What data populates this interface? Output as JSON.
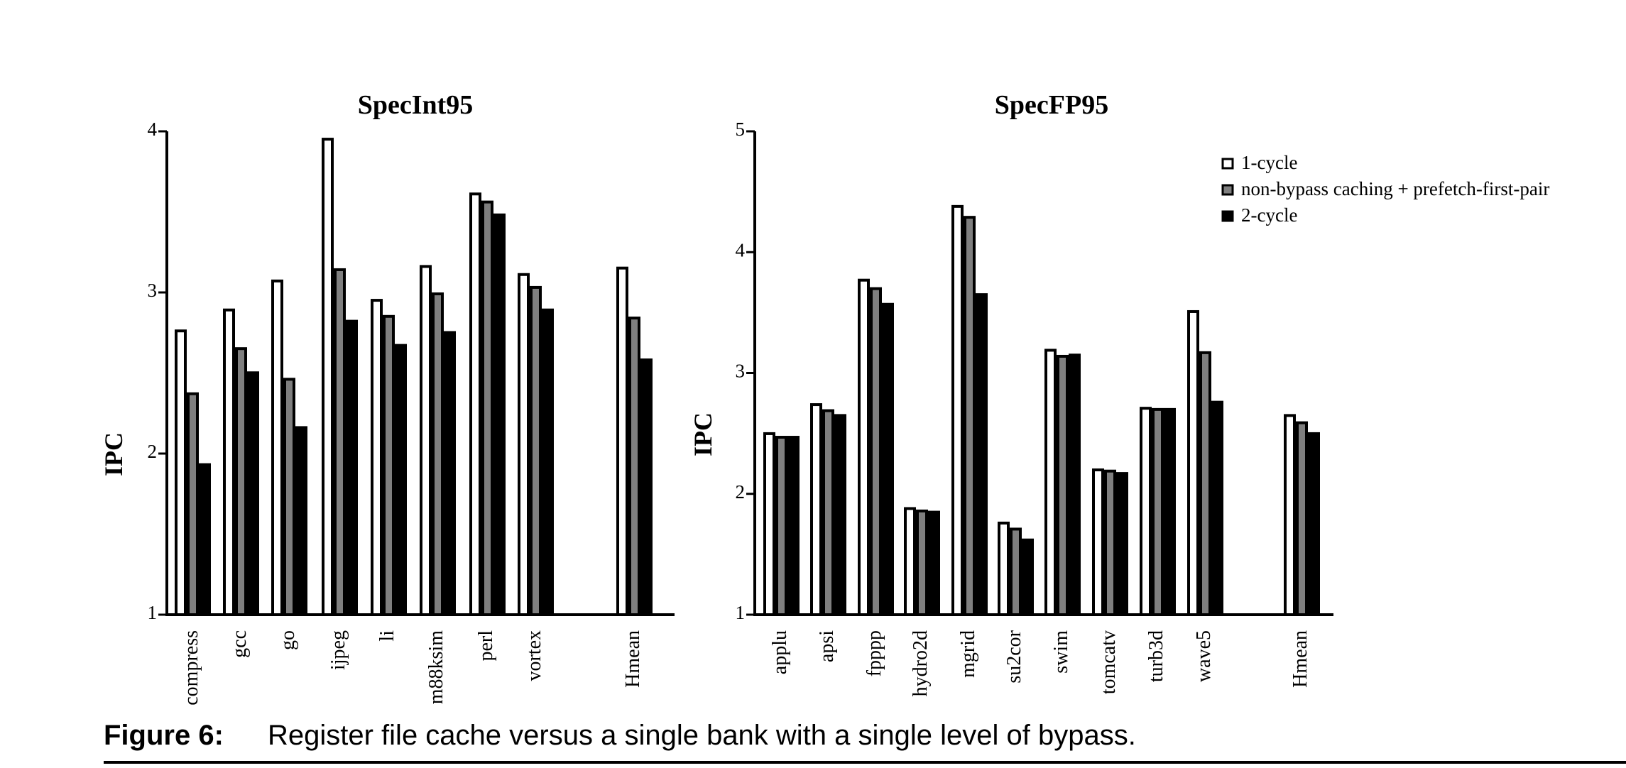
{
  "colors": {
    "series": [
      "#ffffff",
      "#7f7f7f",
      "#000000"
    ],
    "stroke": "#000000"
  },
  "chart_data": [
    {
      "type": "bar",
      "title": "SpecInt95",
      "ylabel": "IPC",
      "xlabel": "",
      "ylim": [
        1,
        4
      ],
      "yticks": [
        "1",
        "2",
        "3",
        "4"
      ],
      "categories": [
        "compress",
        "gcc",
        "go",
        "ijpeg",
        "li",
        "m88ksim",
        "perl",
        "vortex",
        "Hmean"
      ],
      "series": [
        {
          "name": "1-cycle",
          "values": [
            2.77,
            2.9,
            3.08,
            3.96,
            2.96,
            3.17,
            3.62,
            3.12,
            3.16
          ]
        },
        {
          "name": "non-bypass caching + prefetch-first-pair",
          "values": [
            2.38,
            2.66,
            2.47,
            3.15,
            2.86,
            3.0,
            3.57,
            3.04,
            2.85
          ]
        },
        {
          "name": "2-cycle",
          "values": [
            1.94,
            2.51,
            2.17,
            2.83,
            2.68,
            2.76,
            3.49,
            2.9,
            2.59
          ]
        }
      ],
      "grid": false,
      "legend": "none"
    },
    {
      "type": "bar",
      "title": "SpecFP95",
      "ylabel": "IPC",
      "xlabel": "",
      "ylim": [
        1,
        5
      ],
      "yticks": [
        "1",
        "2",
        "3",
        "4",
        "5"
      ],
      "categories": [
        "applu",
        "apsi",
        "fpppp",
        "hydro2d",
        "mgrid",
        "su2cor",
        "swim",
        "tomcatv",
        "turb3d",
        "wave5",
        "Hmean"
      ],
      "series": [
        {
          "name": "1-cycle",
          "values": [
            2.51,
            2.75,
            3.78,
            1.89,
            4.39,
            1.77,
            3.2,
            2.21,
            2.72,
            3.52,
            2.66
          ]
        },
        {
          "name": "non-bypass caching + prefetch-first-pair",
          "values": [
            2.48,
            2.7,
            3.71,
            1.87,
            4.3,
            1.72,
            3.15,
            2.2,
            2.71,
            3.18,
            2.6
          ]
        },
        {
          "name": "2-cycle",
          "values": [
            2.48,
            2.66,
            3.58,
            1.86,
            3.66,
            1.63,
            3.16,
            2.18,
            2.71,
            2.77,
            2.51
          ]
        }
      ],
      "grid": false,
      "legend": "top-right"
    }
  ],
  "caption": {
    "label": "Figure 6:",
    "text": "Register file cache versus a single bank with a single level of bypass."
  }
}
